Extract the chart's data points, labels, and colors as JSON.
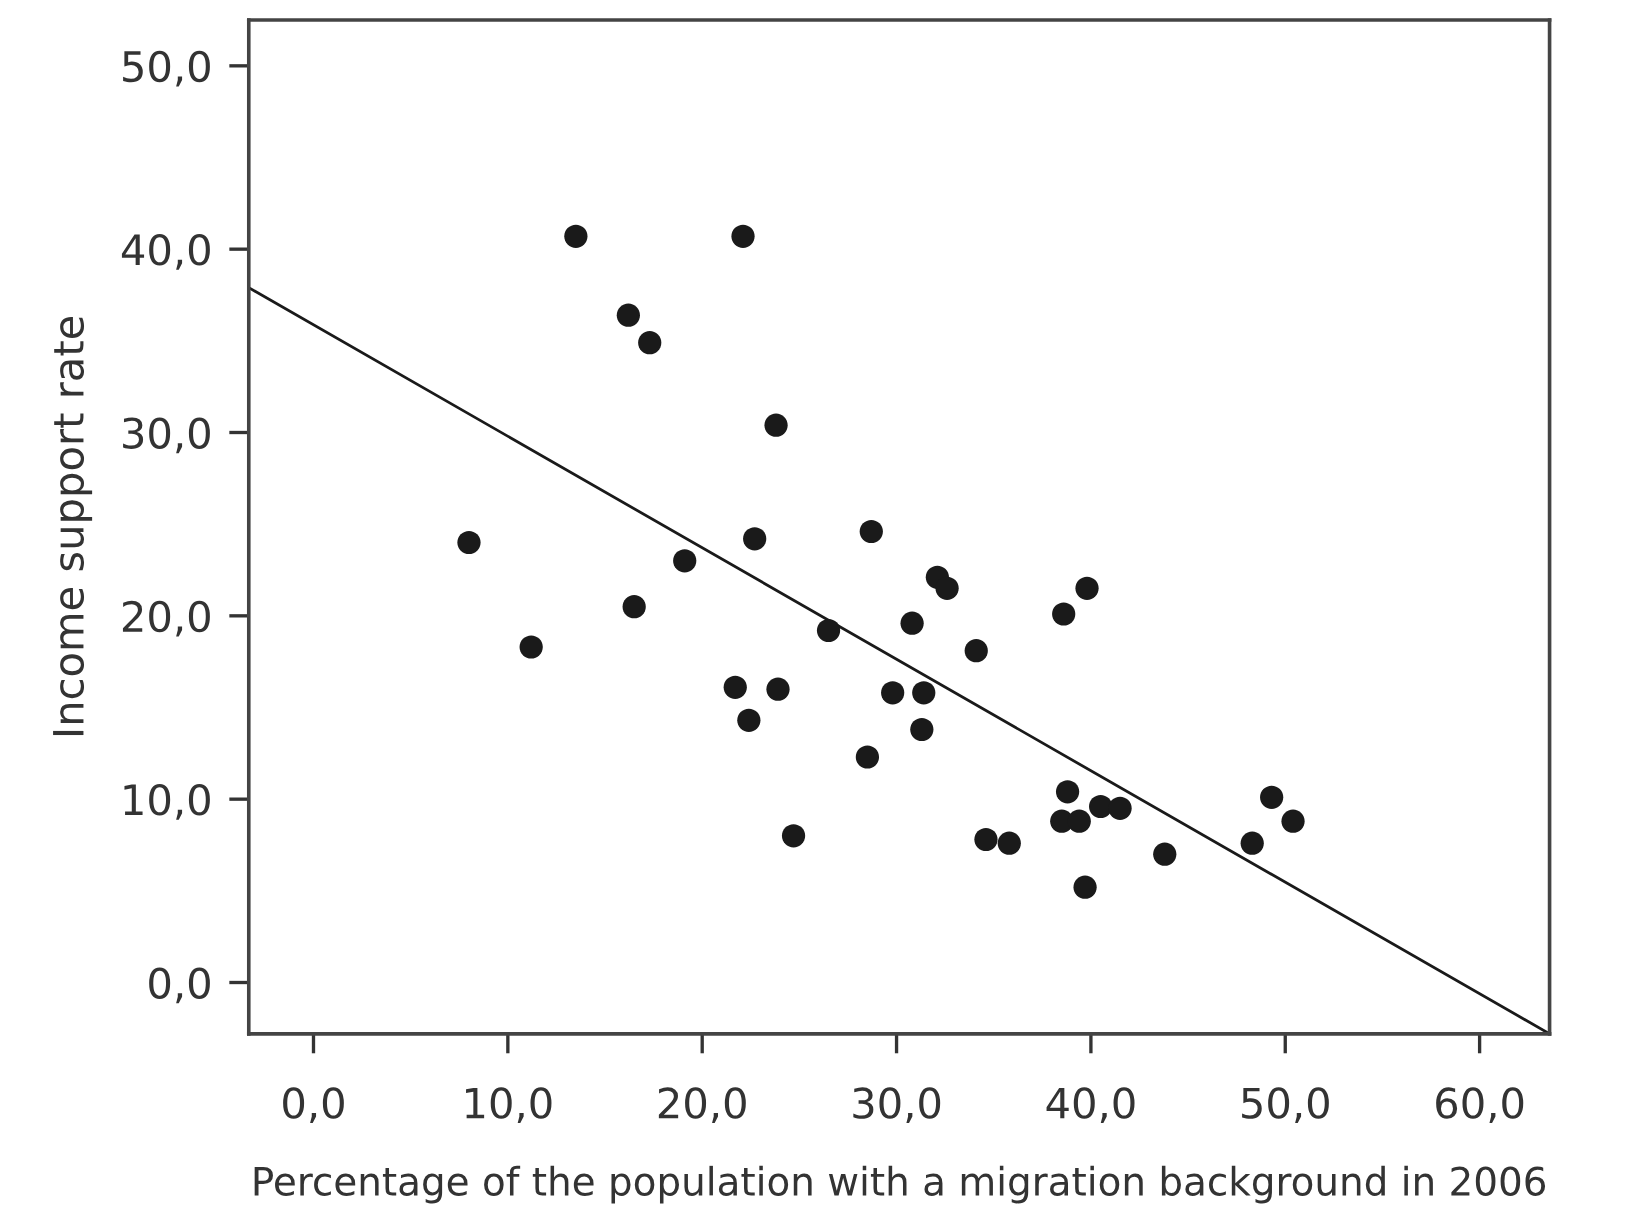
{
  "chart_data": {
    "type": "scatter",
    "xlabel": "Percentage of the population with a migration background in 2006",
    "ylabel": "Income support rate",
    "xlim": [
      -3.33,
      63.6
    ],
    "ylim": [
      -2.8,
      52.5
    ],
    "xticks": [
      {
        "value": 0,
        "label": "0,0"
      },
      {
        "value": 10,
        "label": "10,0"
      },
      {
        "value": 20,
        "label": "20,0"
      },
      {
        "value": 30,
        "label": "30,0"
      },
      {
        "value": 40,
        "label": "40,0"
      },
      {
        "value": 50,
        "label": "50,0"
      },
      {
        "value": 60,
        "label": "60,0"
      }
    ],
    "yticks": [
      {
        "value": 0,
        "label": "0,0"
      },
      {
        "value": 10,
        "label": "10,0"
      },
      {
        "value": 20,
        "label": "20,0"
      },
      {
        "value": 30,
        "label": "30,0"
      },
      {
        "value": 40,
        "label": "40,0"
      },
      {
        "value": 50,
        "label": "50,0"
      }
    ],
    "grid": false,
    "marker": "circle",
    "series": [
      {
        "color": "#1a1a1a",
        "x": [
          13.5,
          22.1,
          16.2,
          17.3,
          23.8,
          8.0,
          22.7,
          19.1,
          28.7,
          32.1,
          32.6,
          11.2,
          16.5,
          21.7,
          22.4,
          23.9,
          24.7,
          26.5,
          28.5,
          29.8,
          30.8,
          31.4,
          31.3,
          34.1,
          38.6,
          39.8,
          38.8,
          38.5,
          39.4,
          40.5,
          41.5,
          39.7,
          34.6,
          35.8,
          43.8,
          48.3,
          49.3,
          50.4
        ],
        "values": [
          40.7,
          40.7,
          36.4,
          34.9,
          30.4,
          24.0,
          24.2,
          23.0,
          24.6,
          22.1,
          21.5,
          18.3,
          20.5,
          16.1,
          14.3,
          16.0,
          8.0,
          19.2,
          12.3,
          15.8,
          19.6,
          15.8,
          13.8,
          18.1,
          20.1,
          21.5,
          10.4,
          8.8,
          8.8,
          9.6,
          9.5,
          5.2,
          7.8,
          7.6,
          7.0,
          7.6,
          10.1,
          8.8
        ]
      },
      {
        "type": "line",
        "color": "#1a1a1a",
        "x": [
          -3.33,
          63.6
        ],
        "values": [
          37.9,
          -2.8
        ],
        "marker": "none",
        "line_style": "solid"
      }
    ]
  }
}
